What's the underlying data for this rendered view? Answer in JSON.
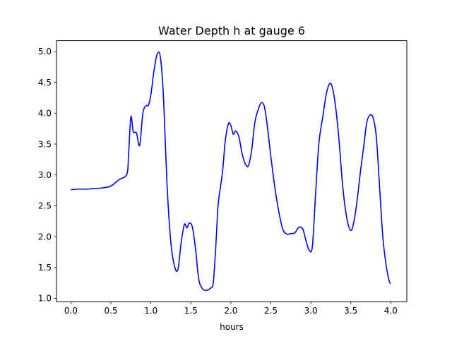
{
  "chart_data": {
    "type": "line",
    "title": "Water Depth h at gauge 6",
    "xlabel": "hours",
    "ylabel": "",
    "xlim": [
      -0.18,
      4.2
    ],
    "ylim": [
      0.945,
      5.175
    ],
    "xticks": [
      0.0,
      0.5,
      1.0,
      1.5,
      2.0,
      2.5,
      3.0,
      3.5,
      4.0
    ],
    "xtick_labels": [
      "0.0",
      "0.5",
      "1.0",
      "1.5",
      "2.0",
      "2.5",
      "3.0",
      "3.5",
      "4.0"
    ],
    "yticks": [
      1.0,
      1.5,
      2.0,
      2.5,
      3.0,
      3.5,
      4.0,
      4.5,
      5.0
    ],
    "ytick_labels": [
      "1.0",
      "1.5",
      "2.0",
      "2.5",
      "3.0",
      "3.5",
      "4.0",
      "4.5",
      "5.0"
    ],
    "grid": false,
    "series": [
      {
        "color": "#0000ff",
        "x": [
          0.0,
          0.1,
          0.2,
          0.3,
          0.4,
          0.5,
          0.6,
          0.7,
          0.72,
          0.75,
          0.78,
          0.82,
          0.86,
          0.9,
          0.94,
          0.97,
          1.0,
          1.04,
          1.08,
          1.12,
          1.16,
          1.2,
          1.25,
          1.3,
          1.34,
          1.38,
          1.42,
          1.45,
          1.48,
          1.52,
          1.56,
          1.6,
          1.65,
          1.7,
          1.75,
          1.78,
          1.81,
          1.84,
          1.87,
          1.9,
          1.93,
          1.97,
          2.0,
          2.03,
          2.06,
          2.1,
          2.14,
          2.18,
          2.22,
          2.26,
          2.3,
          2.34,
          2.38,
          2.42,
          2.46,
          2.5,
          2.55,
          2.6,
          2.65,
          2.7,
          2.75,
          2.8,
          2.85,
          2.9,
          2.94,
          2.98,
          3.02,
          3.06,
          3.1,
          3.15,
          3.2,
          3.25,
          3.3,
          3.35,
          3.4,
          3.45,
          3.5,
          3.54,
          3.58,
          3.62,
          3.66,
          3.7,
          3.74,
          3.78,
          3.82,
          3.86,
          3.9,
          3.94,
          3.98,
          4.0
        ],
        "y": [
          2.76,
          2.77,
          2.77,
          2.78,
          2.79,
          2.82,
          2.92,
          3.01,
          3.3,
          3.94,
          3.7,
          3.68,
          3.48,
          4.0,
          4.12,
          4.13,
          4.3,
          4.7,
          4.96,
          4.9,
          4.2,
          2.9,
          1.9,
          1.5,
          1.48,
          1.92,
          2.2,
          2.14,
          2.22,
          2.15,
          1.78,
          1.3,
          1.15,
          1.13,
          1.17,
          1.25,
          1.8,
          2.5,
          2.8,
          3.1,
          3.55,
          3.83,
          3.8,
          3.66,
          3.71,
          3.62,
          3.35,
          3.18,
          3.15,
          3.4,
          3.85,
          4.05,
          4.17,
          4.1,
          3.75,
          3.3,
          2.8,
          2.4,
          2.12,
          2.04,
          2.05,
          2.06,
          2.15,
          2.12,
          1.93,
          1.78,
          1.85,
          2.7,
          3.5,
          3.95,
          4.35,
          4.48,
          4.2,
          3.6,
          2.8,
          2.3,
          2.1,
          2.25,
          2.6,
          3.05,
          3.45,
          3.85,
          3.97,
          3.92,
          3.6,
          2.8,
          2.0,
          1.55,
          1.28,
          1.24
        ]
      }
    ]
  }
}
